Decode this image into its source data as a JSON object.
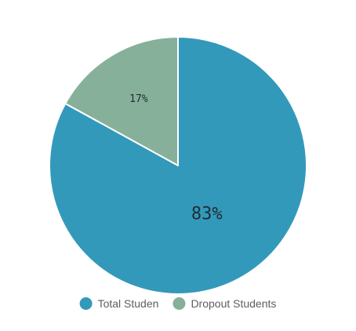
{
  "chart_data": {
    "type": "pie",
    "categories": [
      "Total Studen",
      "Dropout Students"
    ],
    "values": [
      83,
      17
    ],
    "labels": [
      "83%",
      "17%"
    ],
    "colors": [
      "#3399bb",
      "#86b09a"
    ],
    "start_angle_deg": 0,
    "direction": "clockwise",
    "legend_position": "bottom"
  }
}
